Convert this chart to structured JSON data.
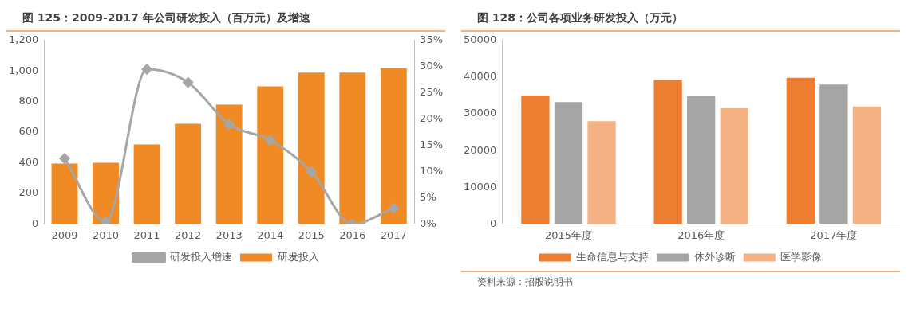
{
  "chart_data": [
    {
      "type": "bar",
      "title": "图 125：2009-2017 年公司研发投入（百万元）及增速",
      "categories": [
        "2009",
        "2010",
        "2011",
        "2012",
        "2013",
        "2014",
        "2015",
        "2016",
        "2017"
      ],
      "series": [
        {
          "name": "研发投入",
          "color": "#f08a24",
          "values": [
            395,
            400,
            520,
            655,
            780,
            900,
            990,
            990,
            1020
          ]
        },
        {
          "name": "研发投入增速",
          "type": "line",
          "axis": "y2",
          "color": "#a6a6a6",
          "marker": "diamond",
          "values": [
            12.5,
            0.5,
            29.5,
            27,
            19,
            16,
            10,
            0,
            3
          ]
        }
      ],
      "ylim": [
        0,
        1200
      ],
      "yticks": [
        0,
        200,
        400,
        600,
        800,
        {
          "value": 1000,
          "label": "1,000"
        },
        {
          "value": 1200,
          "label": "1,200"
        }
      ],
      "y2lim": [
        0,
        35
      ],
      "y2ticks": [
        {
          "value": 0,
          "label": "0%"
        },
        {
          "value": 5,
          "label": "5%"
        },
        {
          "value": 10,
          "label": "10%"
        },
        {
          "value": 15,
          "label": "15%"
        },
        {
          "value": 20,
          "label": "20%"
        },
        {
          "value": 25,
          "label": "25%"
        },
        {
          "value": 30,
          "label": "30%"
        },
        {
          "value": 35,
          "label": "35%"
        }
      ],
      "grid": false,
      "legend": "bottom"
    },
    {
      "type": "bar",
      "title": "图 128：公司各项业务研发投入（万元）",
      "categories": [
        "2015年度",
        "2016年度",
        "2017年度"
      ],
      "series": [
        {
          "name": "生命信息与支持",
          "color": "#ed7d31",
          "values": [
            35000,
            39200,
            39800
          ]
        },
        {
          "name": "体外诊断",
          "color": "#a5a5a5",
          "values": [
            33200,
            34800,
            38000
          ]
        },
        {
          "name": "医学影像",
          "color": "#f4b183",
          "values": [
            28000,
            31500,
            32000
          ]
        }
      ],
      "ylim": [
        0,
        50000
      ],
      "yticks": [
        0,
        10000,
        20000,
        30000,
        40000,
        50000
      ],
      "grid": false,
      "legend": "bottom",
      "annotations": [
        "资料来源：招股说明书"
      ]
    }
  ]
}
